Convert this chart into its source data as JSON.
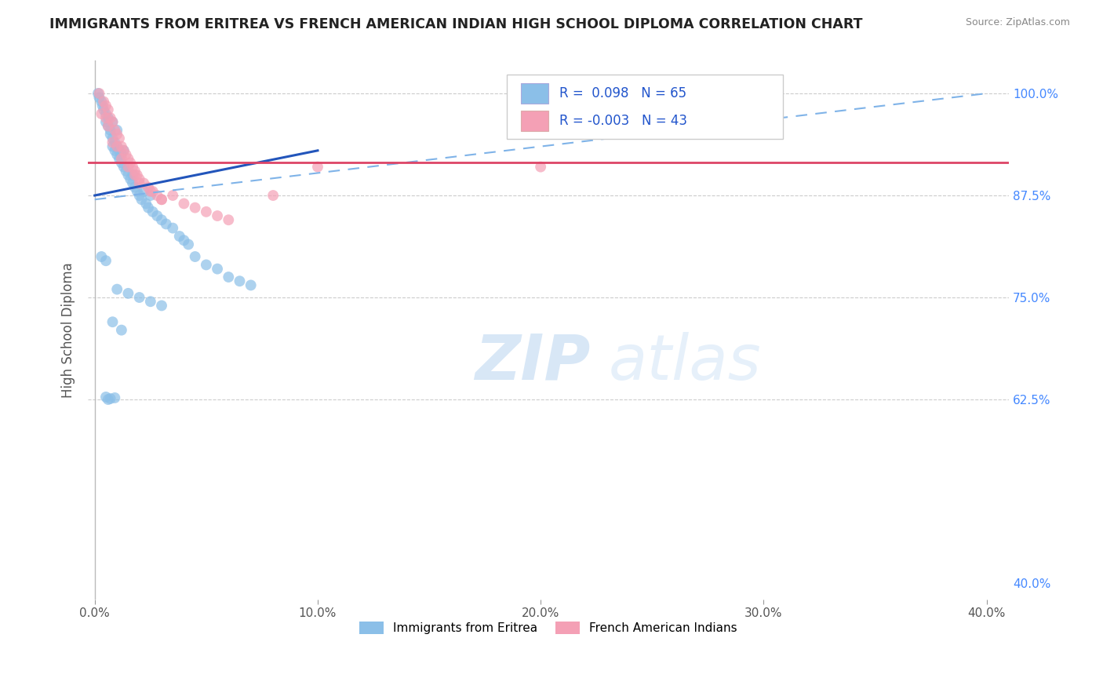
{
  "title": "IMMIGRANTS FROM ERITREA VS FRENCH AMERICAN INDIAN HIGH SCHOOL DIPLOMA CORRELATION CHART",
  "source": "Source: ZipAtlas.com",
  "xlabel_ticks": [
    "0.0%",
    "10.0%",
    "20.0%",
    "30.0%",
    "40.0%"
  ],
  "xlabel_vals": [
    0.0,
    10.0,
    20.0,
    30.0,
    40.0
  ],
  "ylabel": "High School Diploma",
  "ylabel_ticks": [
    "100.0%",
    "87.5%",
    "75.0%",
    "62.5%",
    "40.0%"
  ],
  "ylabel_vals": [
    100.0,
    87.5,
    75.0,
    62.5,
    40.0
  ],
  "ylim": [
    38.0,
    104.0
  ],
  "xlim": [
    -0.3,
    41.0
  ],
  "blue_R": 0.098,
  "blue_N": 65,
  "pink_R": -0.003,
  "pink_N": 43,
  "blue_color": "#8bbfe8",
  "pink_color": "#f4a0b5",
  "trend_blue_solid_color": "#2255bb",
  "trend_pink_solid_color": "#dd4466",
  "trend_blue_dash_color": "#7fb3e8",
  "watermark_zip": "ZIP",
  "watermark_atlas": "atlas",
  "legend_label_blue": "Immigrants from Eritrea",
  "legend_label_pink": "French American Indians",
  "blue_x": [
    0.15,
    0.2,
    0.3,
    0.35,
    0.4,
    0.5,
    0.5,
    0.6,
    0.6,
    0.7,
    0.7,
    0.8,
    0.8,
    0.8,
    0.9,
    0.9,
    1.0,
    1.0,
    1.0,
    1.1,
    1.1,
    1.2,
    1.2,
    1.3,
    1.3,
    1.4,
    1.5,
    1.6,
    1.7,
    1.7,
    1.8,
    1.9,
    2.0,
    2.1,
    2.2,
    2.3,
    2.4,
    2.5,
    2.6,
    2.8,
    3.0,
    3.2,
    3.5,
    3.8,
    4.0,
    4.2,
    4.5,
    5.0,
    5.5,
    6.0,
    6.5,
    7.0,
    0.3,
    0.5,
    1.0,
    1.5,
    2.0,
    2.5,
    3.0,
    0.8,
    1.2,
    0.5,
    0.6,
    0.7,
    0.9
  ],
  "blue_y": [
    100.0,
    99.5,
    99.0,
    98.5,
    98.0,
    97.5,
    96.5,
    97.0,
    96.0,
    95.5,
    95.0,
    94.5,
    93.5,
    96.5,
    93.0,
    94.0,
    92.5,
    95.5,
    93.5,
    92.0,
    93.0,
    91.5,
    92.5,
    91.0,
    93.0,
    90.5,
    90.0,
    89.5,
    89.0,
    90.0,
    88.5,
    88.0,
    87.5,
    87.0,
    88.0,
    86.5,
    86.0,
    87.5,
    85.5,
    85.0,
    84.5,
    84.0,
    83.5,
    82.5,
    82.0,
    81.5,
    80.0,
    79.0,
    78.5,
    77.5,
    77.0,
    76.5,
    80.0,
    79.5,
    76.0,
    75.5,
    75.0,
    74.5,
    74.0,
    72.0,
    71.0,
    62.8,
    62.5,
    62.6,
    62.7
  ],
  "pink_x": [
    0.2,
    0.4,
    0.5,
    0.6,
    0.7,
    0.8,
    0.9,
    1.0,
    1.1,
    1.2,
    1.3,
    1.4,
    1.5,
    1.6,
    1.7,
    1.8,
    1.9,
    2.0,
    2.2,
    2.4,
    2.6,
    2.8,
    3.0,
    3.5,
    4.0,
    4.5,
    5.0,
    5.5,
    6.0,
    0.3,
    0.6,
    0.8,
    1.0,
    1.2,
    1.5,
    1.8,
    2.0,
    2.5,
    3.0,
    8.0,
    10.0,
    20.0,
    0.5
  ],
  "pink_y": [
    100.0,
    99.0,
    98.5,
    98.0,
    97.0,
    96.5,
    95.5,
    95.0,
    94.5,
    93.5,
    93.0,
    92.5,
    92.0,
    91.5,
    91.0,
    90.5,
    90.0,
    89.5,
    89.0,
    88.5,
    88.0,
    87.5,
    87.0,
    87.5,
    86.5,
    86.0,
    85.5,
    85.0,
    84.5,
    97.5,
    96.0,
    94.0,
    93.5,
    92.0,
    91.0,
    90.0,
    89.0,
    88.0,
    87.0,
    87.5,
    91.0,
    91.0,
    97.0
  ],
  "trend_blue_x0": 0.0,
  "trend_blue_y0": 87.5,
  "trend_blue_x1": 10.0,
  "trend_blue_y1": 93.0,
  "trend_pink_y": 91.5,
  "trend_dash_x0": 0.0,
  "trend_dash_y0": 87.0,
  "trend_dash_x1": 40.0,
  "trend_dash_y1": 100.0
}
